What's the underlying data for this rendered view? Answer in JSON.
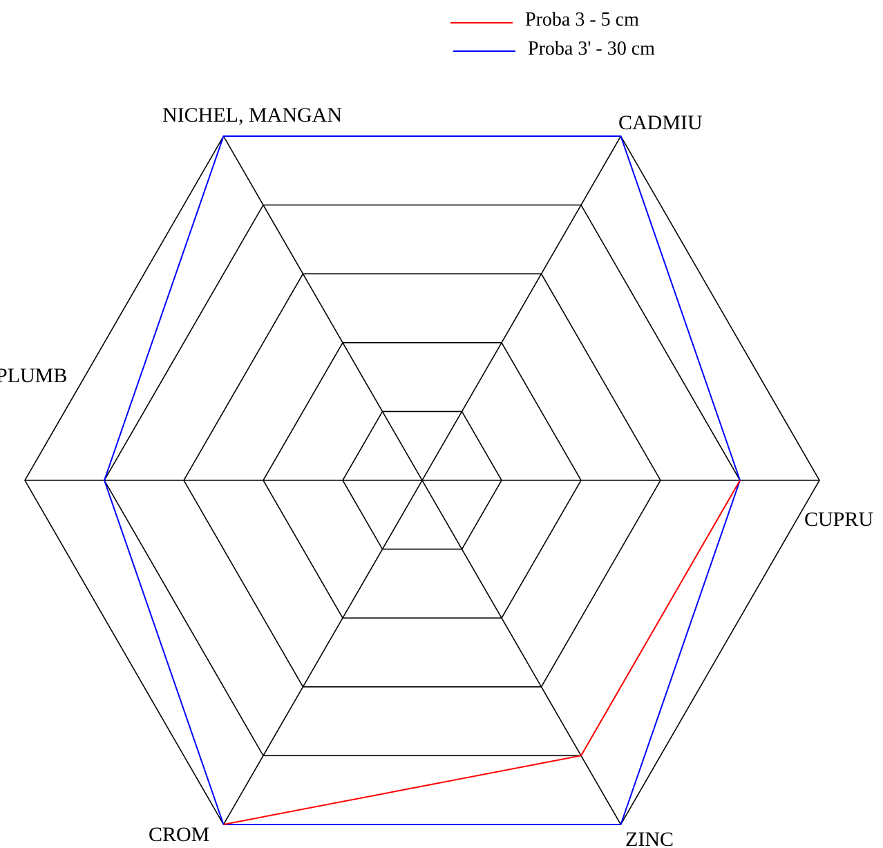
{
  "chart_data": {
    "type": "radar",
    "axes": [
      "CUPRU",
      "CADMIU",
      "NICHEL, MANGAN",
      "PLUMB",
      "CROM",
      "ZINC"
    ],
    "rings": 5,
    "range": [
      0,
      5
    ],
    "grid": true,
    "legend": "top-right",
    "series": [
      {
        "name": "Proba 3 -  5 cm",
        "color": "#ff0000",
        "values": {
          "ZINC": 4,
          "CUPRU": 4,
          "CROM": 5
        },
        "note_segments": [
          [
            "CUPRU",
            "ZINC"
          ],
          [
            "ZINC",
            "CROM"
          ]
        ]
      },
      {
        "name": "Proba 3' - 30 cm",
        "color": "#0000ff",
        "values": {
          "CUPRU": 4,
          "CADMIU": 5,
          "NICHEL, MANGAN": 5,
          "PLUMB": 4,
          "CROM": 5,
          "ZINC": 5
        }
      }
    ]
  }
}
